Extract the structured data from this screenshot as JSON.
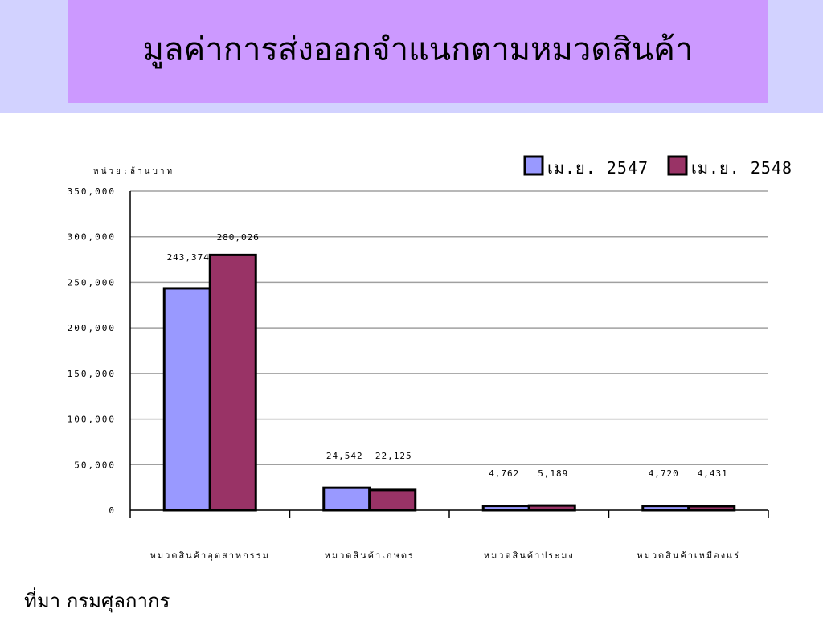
{
  "slide": {
    "title": "มูลค่าการส่งออกจำแนกตามหมวดสินค้า",
    "source": "ที่มา  กรมศุลกากร"
  },
  "chart_data": {
    "type": "bar",
    "unit_label": "หน่วย:ล้านบาท",
    "categories": [
      "หมวดสินค้าอุตสาหกรรม",
      "หมวดสินค้าเกษตร",
      "หมวดสินค้าประมง",
      "หมวดสินค้าเหมืองแร่"
    ],
    "series": [
      {
        "name": "เม.ย. 2547",
        "color": "#9999ff",
        "values": [
          243374,
          24542,
          4762,
          4720
        ],
        "labels": [
          "243,374",
          "24,542",
          "4,762",
          "4,720"
        ]
      },
      {
        "name": "เม.ย. 2548",
        "color": "#993366",
        "values": [
          280026,
          22125,
          5189,
          4431
        ],
        "labels": [
          "280,026",
          "22,125",
          "5,189",
          "4,431"
        ]
      }
    ],
    "ylim": [
      0,
      350000
    ],
    "yticks": [
      0,
      50000,
      100000,
      150000,
      200000,
      250000,
      300000,
      350000
    ],
    "ytick_labels": [
      "0",
      "50,000",
      "100,000",
      "150,000",
      "200,000",
      "250,000",
      "300,000",
      "350,000"
    ],
    "grid": true,
    "legend": "top-right"
  }
}
